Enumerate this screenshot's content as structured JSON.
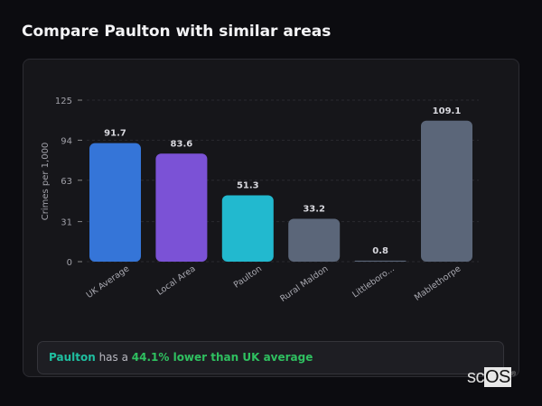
{
  "title": "Compare Paulton with similar areas",
  "chart_data": {
    "type": "bar",
    "title": "Compare Paulton with similar areas",
    "ylabel": "Crimes per 1,000",
    "xlabel": "",
    "ylim": [
      0,
      125
    ],
    "yticks": [
      0,
      31,
      63,
      94,
      125
    ],
    "grid": true,
    "categories": [
      "UK Average",
      "Local Area",
      "Paulton",
      "Rural Maldon",
      "Littleboro...",
      "Mablethorpe"
    ],
    "values": [
      91.7,
      83.6,
      51.3,
      33.2,
      0.8,
      109.1
    ],
    "labels": [
      "91.7",
      "83.6",
      "51.3",
      "33.2",
      "0.8",
      "109.1"
    ],
    "colors": [
      "#3575d8",
      "#7b52d6",
      "#22b9cf",
      "#5b6679",
      "#5b6679",
      "#5b6679"
    ]
  },
  "summary": {
    "area": "Paulton",
    "middle": " has a ",
    "value": "44.1% lower than UK average"
  },
  "watermark": {
    "text_a": "sc",
    "text_b": "OS",
    "mark": "®"
  }
}
